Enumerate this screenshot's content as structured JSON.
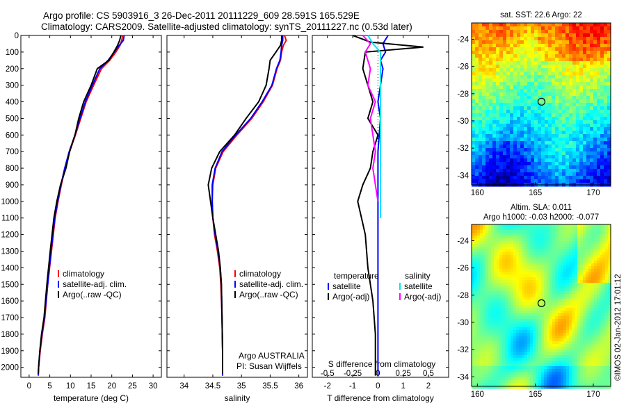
{
  "header": {
    "line1": "Argo profile: CS 5903916_3 26-Dec-2011 20111229_609 28.591S 165.529E",
    "line2": "Climatology: CARS2009. Satellite-adjusted climatology: synTS_20111227.nc (0.53d later)"
  },
  "credit": "©IMOS 02-Jan-2012 17:01:12",
  "depth_ticks": [
    0,
    100,
    200,
    300,
    400,
    500,
    600,
    700,
    800,
    900,
    1000,
    1100,
    1200,
    1300,
    1400,
    1500,
    1600,
    1700,
    1800,
    1900,
    2000
  ],
  "chart_data": [
    {
      "id": "temperature",
      "type": "line",
      "xlabel": "temperature (deg C)",
      "ylabel": "",
      "xlim": [
        -2,
        32
      ],
      "ylim": [
        2060,
        0
      ],
      "xticks": [
        0,
        5,
        10,
        15,
        20,
        25,
        30
      ],
      "legend": [
        "climatology",
        "satellite-adj. clim.",
        "Argo(..raw -QC)"
      ],
      "legend_position": "bottom-center",
      "series": [
        {
          "name": "climatology",
          "color": "#ff0000",
          "x": [
            22.6,
            22.4,
            22.0,
            21.0,
            19.5,
            17.5,
            15.6,
            13.8,
            12.5,
            11.2,
            9.8,
            8.7,
            7.8,
            7.0,
            6.3,
            5.4,
            4.5,
            3.8,
            3.2,
            2.7,
            2.3,
            2.2
          ],
          "y": [
            0,
            30,
            60,
            100,
            150,
            200,
            300,
            400,
            500,
            600,
            700,
            800,
            900,
            1000,
            1100,
            1300,
            1500,
            1700,
            1800,
            1900,
            2000,
            2050
          ]
        },
        {
          "name": "satellite-adj. clim.",
          "color": "#0000ff",
          "x": [
            23.0,
            22.8,
            21.8,
            20.6,
            19.1,
            17.1,
            15.3,
            13.6,
            12.3,
            11.1,
            9.7,
            8.6,
            7.7,
            6.9,
            6.2,
            5.3,
            4.5,
            3.7,
            3.1,
            2.6,
            2.3,
            2.2
          ],
          "y": [
            0,
            30,
            60,
            100,
            150,
            200,
            300,
            400,
            500,
            600,
            700,
            800,
            900,
            1000,
            1100,
            1300,
            1500,
            1700,
            1800,
            1900,
            2000,
            2050
          ]
        },
        {
          "name": "Argo(..raw -QC)",
          "color": "#000000",
          "x": [
            22.2,
            21.9,
            21.4,
            20.5,
            19.3,
            16.5,
            15.0,
            13.2,
            12.0,
            11.1,
            9.8,
            8.9,
            7.6,
            6.7,
            6.0,
            5.1,
            4.3,
            3.6,
            3.0,
            2.6,
            2.3,
            2.2
          ],
          "y": [
            0,
            30,
            60,
            100,
            150,
            200,
            300,
            400,
            500,
            600,
            700,
            800,
            900,
            1000,
            1100,
            1300,
            1500,
            1700,
            1800,
            1900,
            2000,
            2040
          ]
        }
      ]
    },
    {
      "id": "salinity",
      "type": "line",
      "xlabel": "salinity",
      "ylabel": "",
      "xlim": [
        33.7,
        36.15
      ],
      "ylim": [
        2060,
        0
      ],
      "xticks": [
        34,
        34.5,
        35,
        35.5,
        36
      ],
      "legend": [
        "climatology",
        "satellite-adj. clim.",
        "Argo(..raw -QC)"
      ],
      "legend_position": "bottom-center",
      "annotation": [
        "Argo AUSTRALIA",
        "PI: Susan Wijffels"
      ],
      "series": [
        {
          "name": "climatology",
          "color": "#ff0000",
          "x": [
            35.75,
            35.78,
            35.73,
            35.7,
            35.68,
            35.62,
            35.54,
            35.38,
            35.18,
            34.92,
            34.68,
            34.55,
            34.5,
            34.49,
            34.5,
            34.53,
            34.58,
            34.62,
            34.64,
            34.66,
            34.67,
            34.67
          ],
          "y": [
            0,
            30,
            60,
            100,
            150,
            200,
            300,
            400,
            500,
            600,
            700,
            800,
            900,
            1000,
            1100,
            1200,
            1300,
            1400,
            1500,
            1700,
            1900,
            2050
          ]
        },
        {
          "name": "satellite-adj. clim.",
          "color": "#0000ff",
          "x": [
            35.72,
            35.72,
            35.7,
            35.69,
            35.67,
            35.61,
            35.53,
            35.36,
            35.16,
            34.9,
            34.66,
            34.54,
            34.49,
            34.49,
            34.5,
            34.54,
            34.59,
            34.63,
            34.65,
            34.66,
            34.67,
            34.67
          ],
          "y": [
            0,
            30,
            60,
            100,
            150,
            200,
            300,
            400,
            500,
            600,
            700,
            800,
            900,
            1000,
            1100,
            1200,
            1300,
            1400,
            1500,
            1700,
            1900,
            2050
          ]
        },
        {
          "name": "Argo(..raw -QC)",
          "color": "#000000",
          "x": [
            35.7,
            35.7,
            35.68,
            35.6,
            35.5,
            35.48,
            35.43,
            35.3,
            35.08,
            34.88,
            34.62,
            34.48,
            34.42,
            34.46,
            34.5,
            34.55,
            34.6,
            34.63,
            34.65,
            34.66,
            34.67,
            34.67
          ],
          "y": [
            0,
            30,
            60,
            100,
            150,
            200,
            300,
            400,
            500,
            600,
            700,
            800,
            900,
            1000,
            1100,
            1200,
            1300,
            1400,
            1500,
            1700,
            1900,
            2040
          ]
        }
      ]
    },
    {
      "id": "difference",
      "type": "line",
      "xlabel": "T difference from climatology",
      "xlabel_top": "S difference from climatology",
      "xlim": [
        -2.6,
        2.8
      ],
      "ylim": [
        2060,
        0
      ],
      "xticks": [
        -2,
        -1,
        0,
        1,
        2
      ],
      "xticks_s_labels": [
        "-0.5",
        "-0.25",
        "0",
        "0.25",
        "0.5"
      ],
      "xticks_s_pos": [
        -2,
        -1,
        0,
        1,
        2
      ],
      "legend_left": {
        "title": "temperature",
        "items": [
          "satellite",
          "Argo(-adj)"
        ]
      },
      "legend_right": {
        "title": "salinity",
        "items": [
          "satellite",
          "Argo(-adj)"
        ]
      },
      "legend_position": "bottom",
      "series": [
        {
          "name": "temperature satellite",
          "color": "#0000ff",
          "x": [
            0.4,
            0.2,
            0.3,
            0.1,
            0.2,
            0.1,
            0.0,
            0.1,
            0.05,
            0.0,
            0.0,
            0.0,
            0.0,
            0.0,
            0.0,
            0.0,
            0.0
          ],
          "y": [
            0,
            50,
            100,
            150,
            200,
            300,
            400,
            500,
            600,
            700,
            800,
            900,
            1000,
            1200,
            1500,
            1800,
            2050
          ]
        },
        {
          "name": "temperature Argo(-adj)",
          "color": "#000000",
          "x": [
            -1.0,
            -0.3,
            1.8,
            -0.5,
            -0.6,
            -0.4,
            -0.2,
            -0.4,
            0.0,
            -0.2,
            -0.3,
            -0.6,
            -0.8,
            -0.5,
            -0.4,
            -0.2,
            -0.1,
            -0.1
          ],
          "y": [
            0,
            40,
            70,
            100,
            200,
            300,
            400,
            500,
            600,
            700,
            800,
            900,
            1000,
            1200,
            1400,
            1600,
            1800,
            2050
          ]
        },
        {
          "name": "salinity satellite",
          "color": "#00e5ee",
          "x": [
            -0.4,
            -0.2,
            0.1,
            0.1,
            0.1,
            0.1,
            0.1,
            0.1,
            0.1,
            0.1,
            0.1,
            0.1,
            0.1
          ],
          "y": [
            0,
            50,
            100,
            200,
            300,
            400,
            500,
            600,
            700,
            800,
            900,
            1000,
            1100
          ]
        },
        {
          "name": "salinity Argo(-adj)",
          "color": "#ff00ff",
          "x": [
            -0.6,
            -0.3,
            -0.5,
            -0.3,
            -0.4,
            -0.1,
            -0.3,
            -0.2,
            -0.1,
            -0.2,
            -0.1,
            0.0
          ],
          "y": [
            0,
            50,
            100,
            200,
            300,
            400,
            500,
            600,
            700,
            800,
            900,
            1000
          ]
        }
      ]
    },
    {
      "id": "sst-map",
      "type": "heatmap",
      "title": "sat. SST: 22.6  Argo: 22",
      "xticks": [
        160,
        165,
        170
      ],
      "yticks": [
        -24,
        -26,
        -28,
        -30,
        -32,
        -34
      ],
      "xlim": [
        159.5,
        171.5
      ],
      "ylim": [
        -34.7,
        -22.8
      ],
      "float_position": [
        165.529,
        -28.591
      ]
    },
    {
      "id": "sla-map",
      "type": "heatmap",
      "title_line1": "Altim. SLA: 0.011",
      "title_line2": "Argo h1000: -0.03 h2000: -0.077",
      "xticks": [
        160,
        165,
        170
      ],
      "yticks": [
        -24,
        -26,
        -28,
        -30,
        -32,
        -34
      ],
      "xlim": [
        159.5,
        171.5
      ],
      "ylim": [
        -34.7,
        -22.8
      ],
      "float_position": [
        165.529,
        -28.591
      ]
    }
  ]
}
